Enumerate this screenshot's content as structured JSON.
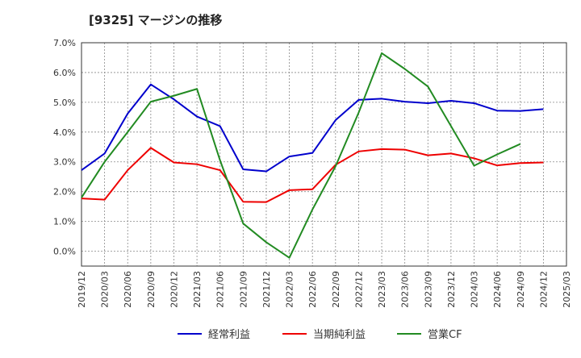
{
  "chart_data": {
    "type": "line",
    "title": "[9325]  マージンの推移",
    "x": [
      "2019/12",
      "2020/03",
      "2020/06",
      "2020/09",
      "2020/12",
      "2021/03",
      "2021/06",
      "2021/09",
      "2021/12",
      "2022/03",
      "2022/06",
      "2022/09",
      "2022/12",
      "2023/03",
      "2023/06",
      "2023/09",
      "2023/12",
      "2024/03",
      "2024/06",
      "2024/09",
      "2024/12",
      "2025/03"
    ],
    "y_ticks": [
      "7.0%",
      "6.0%",
      "5.0%",
      "4.0%",
      "3.0%",
      "2.0%",
      "1.0%",
      "0.0%"
    ],
    "ylim": [
      -0.5,
      7.0
    ],
    "grid": true,
    "legend_position": "bottom",
    "series": [
      {
        "name": "経常利益",
        "color": "#0000cc",
        "values": [
          2.72,
          3.28,
          4.62,
          5.6,
          5.1,
          4.52,
          4.2,
          2.75,
          2.68,
          3.18,
          3.3,
          4.4,
          5.08,
          5.12,
          5.02,
          4.97,
          5.05,
          4.97,
          4.72,
          4.71,
          4.77,
          null
        ]
      },
      {
        "name": "当期純利益",
        "color": "#ee0000",
        "values": [
          1.77,
          1.73,
          2.72,
          3.47,
          2.98,
          2.92,
          2.72,
          1.66,
          1.65,
          2.05,
          2.08,
          2.9,
          3.35,
          3.43,
          3.41,
          3.22,
          3.28,
          3.12,
          2.88,
          2.96,
          2.98,
          null
        ]
      },
      {
        "name": "営業CF",
        "color": "#228b22",
        "values": [
          1.8,
          3.0,
          4.0,
          5.02,
          5.22,
          5.45,
          3.05,
          0.93,
          0.3,
          -0.22,
          1.4,
          2.85,
          4.65,
          6.65,
          6.12,
          5.53,
          4.2,
          2.87,
          3.25,
          3.6,
          null,
          null
        ]
      }
    ]
  }
}
